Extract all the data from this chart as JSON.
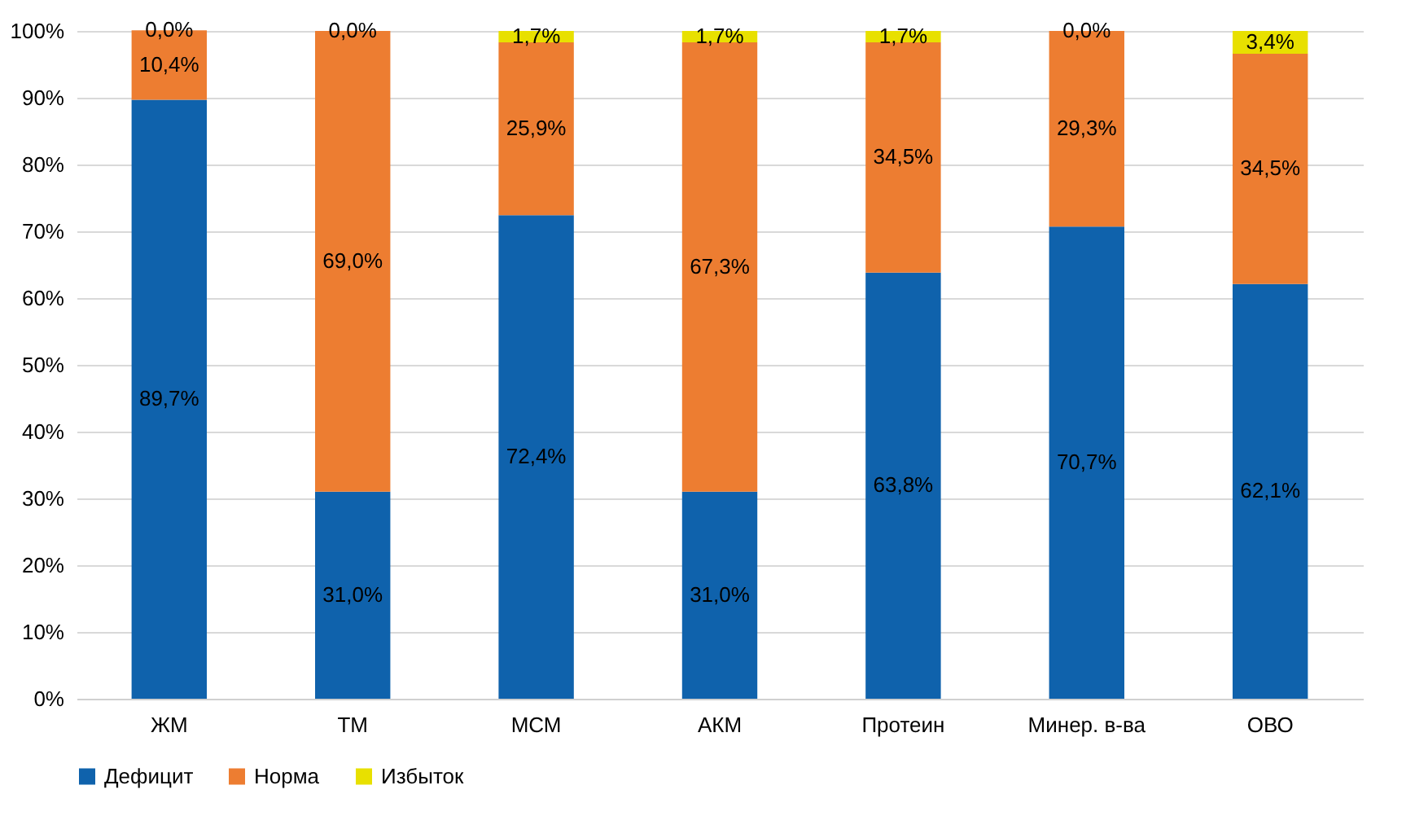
{
  "chart_data": {
    "type": "bar",
    "stacked": true,
    "categories": [
      "ЖМ",
      "ТМ",
      "МСМ",
      "АКМ",
      "Протеин",
      "Минер. в-ва",
      "ОВО"
    ],
    "ylim": [
      0,
      100
    ],
    "yticks": [
      {
        "value": 0,
        "label": "0%"
      },
      {
        "value": 10,
        "label": "10%"
      },
      {
        "value": 20,
        "label": "20%"
      },
      {
        "value": 30,
        "label": "30%"
      },
      {
        "value": 40,
        "label": "40%"
      },
      {
        "value": 50,
        "label": "50%"
      },
      {
        "value": 60,
        "label": "60%"
      },
      {
        "value": 70,
        "label": "70%"
      },
      {
        "value": 80,
        "label": "80%"
      },
      {
        "value": 90,
        "label": "90%"
      },
      {
        "value": 100,
        "label": "100%"
      }
    ],
    "grid": "y",
    "legend": "bottom",
    "series": [
      {
        "name": "Дефицит",
        "color": "#0f62ac",
        "values": [
          89.7,
          31.0,
          72.4,
          31.0,
          63.8,
          70.7,
          62.1
        ],
        "value_labels": [
          "89,7%",
          "31,0%",
          "72,4%",
          "31,0%",
          "63,8%",
          "70,7%",
          "62,1%"
        ]
      },
      {
        "name": "Норма",
        "color": "#ed7d31",
        "values": [
          10.4,
          69.0,
          25.9,
          67.3,
          34.5,
          29.3,
          34.5
        ],
        "value_labels": [
          "10,4%",
          "69,0%",
          "25,9%",
          "67,3%",
          "34,5%",
          "29,3%",
          "34,5%"
        ]
      },
      {
        "name": "Избыток",
        "color": "#e8e000",
        "values": [
          0.0,
          0.0,
          1.7,
          1.7,
          1.7,
          0.0,
          3.4
        ],
        "value_labels": [
          "0,0%",
          "0,0%",
          "1,7%",
          "1,7%",
          "1,7%",
          "0,0%",
          "3,4%"
        ]
      }
    ]
  }
}
